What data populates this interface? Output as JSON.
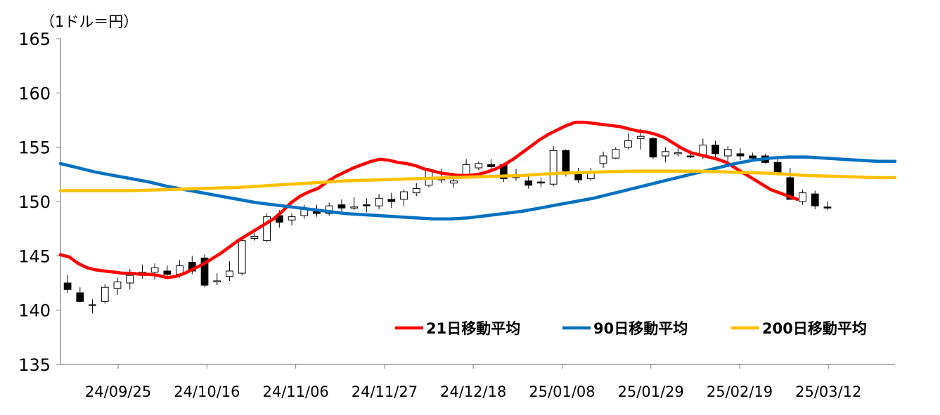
{
  "chart_data": {
    "type": "line",
    "unit_label": "（1ドル＝円）",
    "ylim": [
      135,
      165
    ],
    "yticks": [
      "165",
      "160",
      "155",
      "150",
      "145",
      "140",
      "135"
    ],
    "ytick_values": [
      165,
      160,
      155,
      150,
      145,
      140,
      135
    ],
    "xtick_labels": [
      "24/09/25",
      "24/10/16",
      "24/11/06",
      "24/11/27",
      "24/12/18",
      "25/01/08",
      "25/01/29",
      "25/02/19",
      "25/03/12"
    ],
    "xtick_positions": [
      6.5,
      16.5,
      26.5,
      36.5,
      46.5,
      56.5,
      66.5,
      76.5,
      86.5
    ],
    "x_count": 87,
    "legend_position": "bottom-right",
    "series": [
      {
        "name": "21日移動平均",
        "color": "#ff0000",
        "points": [
          [
            0,
            145.1
          ],
          [
            1,
            144.9
          ],
          [
            2,
            144.3
          ],
          [
            3,
            143.9
          ],
          [
            4,
            143.7
          ],
          [
            5,
            143.6
          ],
          [
            6,
            143.5
          ],
          [
            7,
            143.4
          ],
          [
            8,
            143.4
          ],
          [
            9,
            143.3
          ],
          [
            10,
            143.3
          ],
          [
            11,
            143.2
          ],
          [
            12,
            143.0
          ],
          [
            13,
            143.1
          ],
          [
            14,
            143.4
          ],
          [
            15,
            143.8
          ],
          [
            16,
            144.2
          ],
          [
            17,
            144.7
          ],
          [
            18,
            145.2
          ],
          [
            19,
            145.8
          ],
          [
            20,
            146.4
          ],
          [
            21,
            146.9
          ],
          [
            22,
            147.4
          ],
          [
            23,
            147.9
          ],
          [
            24,
            148.4
          ],
          [
            25,
            149.1
          ],
          [
            26,
            149.9
          ],
          [
            27,
            150.5
          ],
          [
            28,
            150.9
          ],
          [
            29,
            151.2
          ],
          [
            30,
            151.8
          ],
          [
            31,
            152.3
          ],
          [
            32,
            152.7
          ],
          [
            33,
            153.1
          ],
          [
            34,
            153.4
          ],
          [
            35,
            153.7
          ],
          [
            36,
            153.9
          ],
          [
            37,
            153.8
          ],
          [
            38,
            153.6
          ],
          [
            39,
            153.5
          ],
          [
            40,
            153.3
          ],
          [
            41,
            153.0
          ],
          [
            42,
            152.8
          ],
          [
            43,
            152.6
          ],
          [
            44,
            152.5
          ],
          [
            45,
            152.4
          ],
          [
            46,
            152.4
          ],
          [
            47,
            152.5
          ],
          [
            48,
            152.7
          ],
          [
            49,
            153.0
          ],
          [
            50,
            153.4
          ],
          [
            51,
            153.9
          ],
          [
            52,
            154.5
          ],
          [
            53,
            155.1
          ],
          [
            54,
            155.7
          ],
          [
            55,
            156.2
          ],
          [
            56,
            156.6
          ],
          [
            57,
            157.0
          ],
          [
            58,
            157.3
          ],
          [
            59,
            157.3
          ],
          [
            60,
            157.2
          ],
          [
            61,
            157.1
          ],
          [
            62,
            157.0
          ],
          [
            63,
            156.9
          ],
          [
            64,
            156.7
          ],
          [
            65,
            156.5
          ],
          [
            66,
            156.4
          ],
          [
            67,
            156.2
          ],
          [
            68,
            155.9
          ],
          [
            69,
            155.4
          ],
          [
            70,
            154.9
          ],
          [
            71,
            154.5
          ],
          [
            72,
            154.3
          ],
          [
            73,
            154.1
          ],
          [
            74,
            153.9
          ],
          [
            75,
            153.6
          ],
          [
            76,
            153.1
          ],
          [
            77,
            152.6
          ],
          [
            78,
            152.1
          ],
          [
            79,
            151.6
          ],
          [
            80,
            151.1
          ],
          [
            81,
            150.8
          ],
          [
            82,
            150.5
          ],
          [
            83,
            150.2
          ]
        ]
      },
      {
        "name": "90日移動平均",
        "color": "#0070c0",
        "points": [
          [
            0,
            153.5
          ],
          [
            2,
            153.1
          ],
          [
            4,
            152.7
          ],
          [
            6,
            152.4
          ],
          [
            8,
            152.1
          ],
          [
            10,
            151.8
          ],
          [
            12,
            151.4
          ],
          [
            14,
            151.1
          ],
          [
            16,
            150.8
          ],
          [
            18,
            150.5
          ],
          [
            20,
            150.2
          ],
          [
            22,
            149.9
          ],
          [
            24,
            149.7
          ],
          [
            26,
            149.5
          ],
          [
            28,
            149.3
          ],
          [
            30,
            149.1
          ],
          [
            32,
            148.9
          ],
          [
            34,
            148.8
          ],
          [
            36,
            148.7
          ],
          [
            38,
            148.6
          ],
          [
            40,
            148.5
          ],
          [
            42,
            148.4
          ],
          [
            44,
            148.4
          ],
          [
            46,
            148.5
          ],
          [
            48,
            148.7
          ],
          [
            50,
            148.9
          ],
          [
            52,
            149.1
          ],
          [
            54,
            149.4
          ],
          [
            56,
            149.7
          ],
          [
            58,
            150.0
          ],
          [
            60,
            150.3
          ],
          [
            62,
            150.7
          ],
          [
            64,
            151.1
          ],
          [
            66,
            151.5
          ],
          [
            68,
            151.9
          ],
          [
            70,
            152.3
          ],
          [
            72,
            152.7
          ],
          [
            74,
            153.1
          ],
          [
            76,
            153.5
          ],
          [
            78,
            153.8
          ],
          [
            80,
            154.0
          ],
          [
            82,
            154.1
          ],
          [
            84,
            154.1
          ],
          [
            86,
            154.0
          ],
          [
            88,
            153.9
          ],
          [
            90,
            153.8
          ],
          [
            92,
            153.7
          ],
          [
            94,
            153.7
          ]
        ]
      },
      {
        "name": "200日移動平均",
        "color": "#ffc000",
        "points": [
          [
            0,
            151.0
          ],
          [
            4,
            151.0
          ],
          [
            8,
            151.0
          ],
          [
            12,
            151.1
          ],
          [
            16,
            151.2
          ],
          [
            20,
            151.3
          ],
          [
            24,
            151.5
          ],
          [
            28,
            151.7
          ],
          [
            32,
            151.9
          ],
          [
            36,
            152.0
          ],
          [
            40,
            152.1
          ],
          [
            44,
            152.2
          ],
          [
            48,
            152.3
          ],
          [
            52,
            152.4
          ],
          [
            56,
            152.6
          ],
          [
            60,
            152.7
          ],
          [
            64,
            152.8
          ],
          [
            68,
            152.8
          ],
          [
            72,
            152.8
          ],
          [
            76,
            152.7
          ],
          [
            80,
            152.6
          ],
          [
            84,
            152.4
          ],
          [
            88,
            152.3
          ],
          [
            92,
            152.2
          ],
          [
            94,
            152.2
          ]
        ]
      }
    ],
    "candles": [
      [
        142.5,
        143.2,
        141.6,
        141.9
      ],
      [
        141.6,
        142.1,
        140.7,
        140.8
      ],
      [
        140.5,
        141.0,
        139.7,
        140.5
      ],
      [
        140.8,
        142.4,
        140.6,
        142.1
      ],
      [
        142.0,
        143.0,
        141.4,
        142.6
      ],
      [
        142.5,
        143.8,
        141.9,
        143.2
      ],
      [
        143.4,
        144.2,
        142.9,
        143.5
      ],
      [
        143.5,
        144.3,
        142.8,
        143.9
      ],
      [
        143.6,
        144.1,
        143.0,
        143.3
      ],
      [
        143.3,
        144.6,
        143.0,
        144.1
      ],
      [
        144.4,
        145.0,
        143.3,
        143.6
      ],
      [
        144.8,
        145.1,
        142.1,
        142.3
      ],
      [
        142.6,
        143.4,
        142.3,
        142.7
      ],
      [
        143.1,
        144.5,
        142.7,
        143.6
      ],
      [
        143.4,
        146.5,
        143.2,
        146.4
      ],
      [
        146.6,
        147.1,
        146.4,
        146.8
      ],
      [
        146.4,
        148.9,
        146.3,
        148.6
      ],
      [
        148.7,
        149.2,
        147.6,
        148.1
      ],
      [
        148.3,
        148.9,
        147.8,
        148.6
      ],
      [
        148.7,
        149.7,
        148.4,
        149.3
      ],
      [
        149.1,
        149.7,
        148.6,
        148.9
      ],
      [
        148.9,
        149.9,
        148.7,
        149.6
      ],
      [
        149.7,
        150.2,
        149.1,
        149.4
      ],
      [
        149.4,
        150.4,
        149.2,
        149.5
      ],
      [
        149.7,
        150.3,
        149.0,
        149.6
      ],
      [
        149.6,
        150.7,
        149.3,
        150.3
      ],
      [
        150.2,
        150.8,
        149.4,
        150.0
      ],
      [
        150.2,
        151.1,
        149.6,
        150.9
      ],
      [
        150.8,
        151.7,
        150.5,
        151.2
      ],
      [
        151.5,
        153.1,
        151.3,
        152.9
      ],
      [
        152.2,
        153.0,
        151.7,
        152.0
      ],
      [
        151.7,
        152.6,
        151.3,
        151.9
      ],
      [
        152.5,
        153.9,
        152.3,
        153.4
      ],
      [
        153.1,
        153.7,
        152.9,
        153.5
      ],
      [
        153.4,
        153.9,
        153.0,
        153.2
      ],
      [
        153.4,
        153.5,
        151.8,
        152.1
      ],
      [
        152.2,
        153.0,
        151.9,
        152.3
      ],
      [
        151.9,
        152.4,
        151.2,
        151.5
      ],
      [
        151.8,
        152.2,
        151.3,
        151.7
      ],
      [
        151.6,
        155.1,
        151.4,
        154.7
      ],
      [
        154.7,
        154.8,
        152.3,
        152.8
      ],
      [
        152.6,
        153.1,
        151.7,
        152.0
      ],
      [
        152.1,
        153.1,
        151.9,
        152.6
      ],
      [
        153.5,
        154.6,
        153.1,
        154.2
      ],
      [
        154.0,
        155.0,
        153.9,
        154.8
      ],
      [
        155.0,
        156.3,
        154.8,
        155.6
      ],
      [
        155.8,
        156.7,
        154.8,
        156.0
      ],
      [
        155.8,
        155.9,
        153.9,
        154.1
      ],
      [
        154.2,
        155.0,
        153.6,
        154.6
      ],
      [
        154.4,
        155.1,
        154.1,
        154.5
      ],
      [
        154.2,
        154.4,
        154.0,
        154.1
      ],
      [
        154.3,
        155.8,
        153.9,
        155.2
      ],
      [
        155.2,
        155.6,
        154.1,
        154.4
      ],
      [
        154.2,
        155.1,
        153.5,
        154.8
      ],
      [
        154.4,
        154.9,
        153.8,
        154.2
      ],
      [
        154.2,
        154.5,
        153.9,
        154.0
      ],
      [
        154.2,
        154.4,
        153.5,
        153.6
      ],
      [
        153.6,
        154.0,
        152.5,
        152.6
      ],
      [
        152.2,
        153.1,
        150.2,
        150.2
      ],
      [
        150.0,
        151.1,
        149.7,
        150.8
      ],
      [
        150.7,
        151.0,
        149.3,
        149.6
      ],
      [
        149.5,
        150.0,
        149.2,
        149.4
      ]
    ]
  }
}
